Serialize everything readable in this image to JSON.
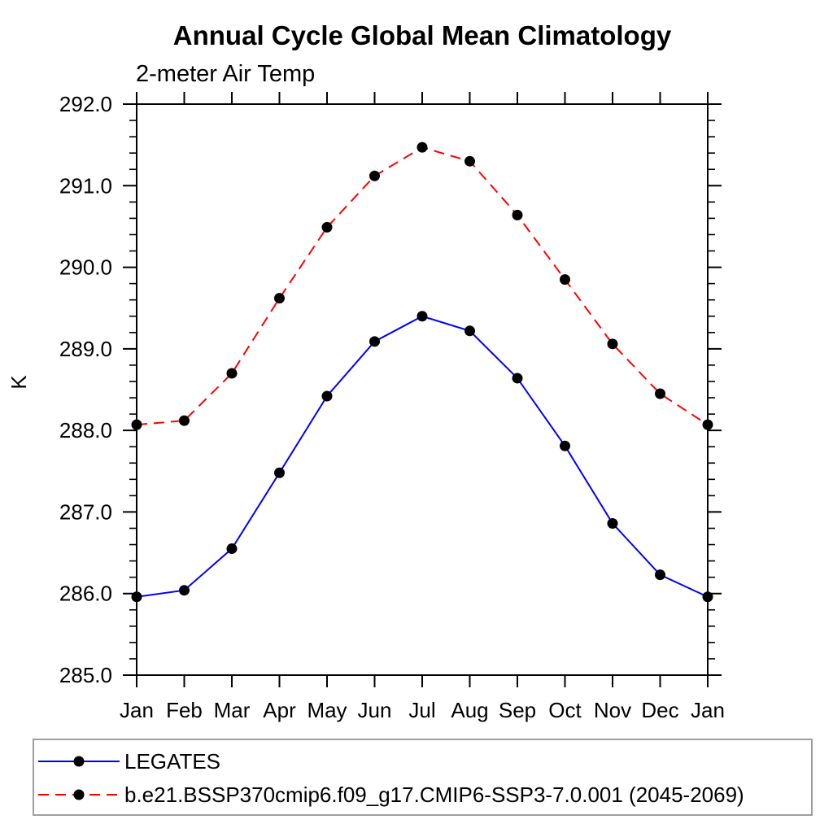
{
  "chart_data": {
    "type": "line",
    "title": "Annual Cycle Global Mean Climatology",
    "subtitle": "2-meter Air Temp",
    "ylabel": "K",
    "xlabel": "",
    "categories": [
      "Jan",
      "Feb",
      "Mar",
      "Apr",
      "May",
      "Jun",
      "Jul",
      "Aug",
      "Sep",
      "Oct",
      "Nov",
      "Dec",
      "Jan"
    ],
    "ylim": [
      285.0,
      292.0
    ],
    "ytick_interval": 1.0,
    "yminor_interval": 0.2,
    "ytick_labels": [
      "285.0",
      "286.0",
      "287.0",
      "288.0",
      "289.0",
      "290.0",
      "291.0",
      "292.0"
    ],
    "grid": "off",
    "frame": "box-with-outward-ticks",
    "series": [
      {
        "name": "LEGATES",
        "color": "#0000ff",
        "line_style": "solid",
        "marker": "filled-circle",
        "marker_color": "#000000",
        "values": [
          285.96,
          286.04,
          286.55,
          287.48,
          288.42,
          289.09,
          289.4,
          289.22,
          288.64,
          287.81,
          286.86,
          286.23,
          285.96
        ]
      },
      {
        "name": "b.e21.BSSP370cmip6.f09_g17.CMIP6-SSP3-7.0.001 (2045-2069)",
        "color": "#ff0000",
        "line_style": "dashed",
        "marker": "filled-circle",
        "marker_color": "#000000",
        "values": [
          288.07,
          288.12,
          288.7,
          289.62,
          290.49,
          291.12,
          291.47,
          291.3,
          290.64,
          289.85,
          289.06,
          288.45,
          288.07
        ]
      }
    ],
    "legend": {
      "position": "bottom",
      "border_color": "#9e9e9e",
      "entries": [
        "LEGATES",
        "b.e21.BSSP370cmip6.f09_g17.CMIP6-SSP3-7.0.001 (2045-2069)"
      ]
    },
    "colors": {
      "axis": "#000000",
      "background": "#ffffff",
      "series1": "#0000ff",
      "series2": "#ff0000",
      "marker": "#000000"
    }
  }
}
